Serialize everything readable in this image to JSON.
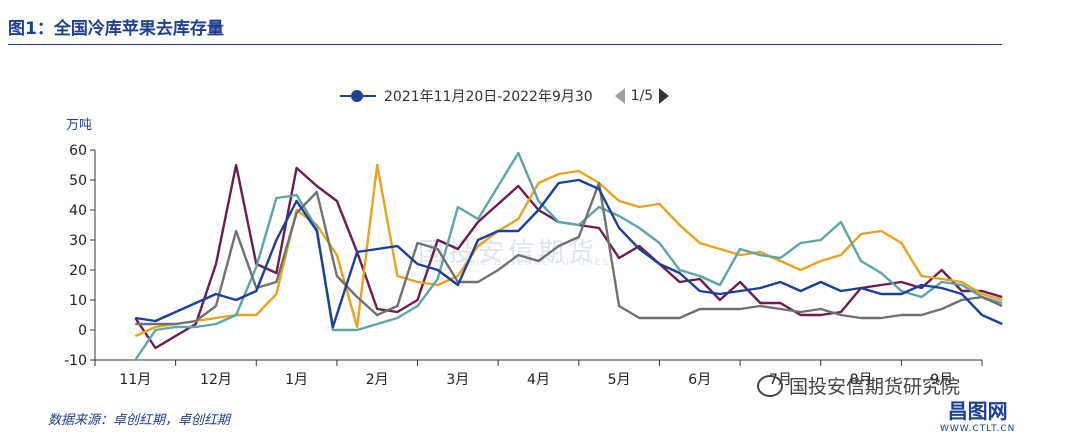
{
  "figure_title": "图1：全国冷库苹果去库存量",
  "legend": {
    "label": "2021年11月20日-2022年9月30",
    "page": "1/5"
  },
  "watermark": {
    "text": "国投安信期货",
    "sub": "SDIC ESSENCE FUTURES"
  },
  "source": "数据来源：卓创红期，卓创红期",
  "wechat_label": "国投安信期货研究院",
  "site_logo": {
    "name": "昌图网",
    "url": "WWW.CTLT.CN"
  },
  "chart_data": {
    "type": "line",
    "ylabel": "万吨",
    "ylim": [
      -10,
      60
    ],
    "yticks": [
      -10,
      0,
      10,
      20,
      30,
      40,
      50,
      60
    ],
    "x_ticks": [
      "11月",
      "12月",
      "1月",
      "2月",
      "3月",
      "4月",
      "5月",
      "6月",
      "7月",
      "8月",
      "9月"
    ],
    "x_range": [
      0,
      11
    ],
    "grid": false,
    "series": [
      {
        "name": "2021年11月20日-2022年9月30",
        "color": "#1d3f95",
        "points": [
          [
            0.5,
            4
          ],
          [
            0.75,
            3
          ],
          [
            1,
            6
          ],
          [
            1.25,
            9
          ],
          [
            1.5,
            12
          ],
          [
            1.75,
            10
          ],
          [
            2,
            13
          ],
          [
            2.25,
            30
          ],
          [
            2.5,
            43
          ],
          [
            2.75,
            33
          ],
          [
            2.95,
            1
          ],
          [
            3.25,
            26
          ],
          [
            3.5,
            27
          ],
          [
            3.75,
            28
          ],
          [
            4,
            22
          ],
          [
            4.25,
            20
          ],
          [
            4.5,
            15
          ],
          [
            4.75,
            30
          ],
          [
            5,
            33
          ],
          [
            5.25,
            33
          ],
          [
            5.5,
            40
          ],
          [
            5.75,
            49
          ],
          [
            6,
            50
          ],
          [
            6.25,
            47
          ],
          [
            6.5,
            34
          ],
          [
            6.75,
            27
          ],
          [
            7,
            22
          ],
          [
            7.25,
            19
          ],
          [
            7.5,
            13
          ],
          [
            7.75,
            12
          ],
          [
            8,
            13
          ],
          [
            8.25,
            14
          ],
          [
            8.5,
            16
          ],
          [
            8.75,
            13
          ],
          [
            9,
            16
          ],
          [
            9.25,
            13
          ],
          [
            9.5,
            14
          ],
          [
            9.75,
            12
          ],
          [
            10,
            12
          ],
          [
            10.25,
            15
          ],
          [
            10.5,
            14
          ],
          [
            10.75,
            12
          ],
          [
            11,
            5
          ],
          [
            11.25,
            2
          ]
        ]
      },
      {
        "name": "",
        "color": "#6b1e4f",
        "points": [
          [
            0.5,
            4
          ],
          [
            0.75,
            -6
          ],
          [
            1,
            -2
          ],
          [
            1.25,
            2
          ],
          [
            1.5,
            22
          ],
          [
            1.75,
            55
          ],
          [
            2,
            22
          ],
          [
            2.25,
            19
          ],
          [
            2.5,
            54
          ],
          [
            2.75,
            48
          ],
          [
            3,
            43
          ],
          [
            3.25,
            26
          ],
          [
            3.5,
            7
          ],
          [
            3.75,
            6
          ],
          [
            4,
            10
          ],
          [
            4.25,
            30
          ],
          [
            4.5,
            27
          ],
          [
            4.75,
            36
          ],
          [
            5,
            42
          ],
          [
            5.25,
            48
          ],
          [
            5.5,
            40
          ],
          [
            5.75,
            36
          ],
          [
            6,
            35
          ],
          [
            6.25,
            34
          ],
          [
            6.5,
            24
          ],
          [
            6.75,
            28
          ],
          [
            7,
            22
          ],
          [
            7.25,
            16
          ],
          [
            7.5,
            17
          ],
          [
            7.75,
            10
          ],
          [
            8,
            16
          ],
          [
            8.25,
            9
          ],
          [
            8.5,
            9
          ],
          [
            8.75,
            5
          ],
          [
            9,
            5
          ],
          [
            9.25,
            6
          ],
          [
            9.5,
            14
          ],
          [
            9.75,
            15
          ],
          [
            10,
            16
          ],
          [
            10.25,
            14
          ],
          [
            10.5,
            20
          ],
          [
            10.75,
            13
          ],
          [
            11,
            13
          ],
          [
            11.25,
            11
          ]
        ]
      },
      {
        "name": "",
        "color": "#e8a321",
        "points": [
          [
            0.5,
            -2
          ],
          [
            0.75,
            1
          ],
          [
            1,
            2
          ],
          [
            1.25,
            3
          ],
          [
            1.5,
            4
          ],
          [
            1.75,
            5
          ],
          [
            2,
            5
          ],
          [
            2.25,
            12
          ],
          [
            2.5,
            40
          ],
          [
            2.75,
            35
          ],
          [
            3,
            25
          ],
          [
            3.25,
            1
          ],
          [
            3.5,
            55
          ],
          [
            3.75,
            18
          ],
          [
            4,
            16
          ],
          [
            4.25,
            15
          ],
          [
            4.5,
            18
          ],
          [
            4.75,
            28
          ],
          [
            5,
            33
          ],
          [
            5.25,
            37
          ],
          [
            5.5,
            49
          ],
          [
            5.75,
            52
          ],
          [
            6,
            53
          ],
          [
            6.25,
            49
          ],
          [
            6.5,
            43
          ],
          [
            6.75,
            41
          ],
          [
            7,
            42
          ],
          [
            7.25,
            35
          ],
          [
            7.5,
            29
          ],
          [
            7.75,
            27
          ],
          [
            8,
            25
          ],
          [
            8.25,
            26
          ],
          [
            8.5,
            23
          ],
          [
            8.75,
            20
          ],
          [
            9,
            23
          ],
          [
            9.25,
            25
          ],
          [
            9.5,
            32
          ],
          [
            9.75,
            33
          ],
          [
            10,
            29
          ],
          [
            10.25,
            18
          ],
          [
            10.5,
            17
          ],
          [
            10.75,
            16
          ],
          [
            11,
            12
          ],
          [
            11.25,
            10
          ]
        ]
      },
      {
        "name": "",
        "color": "#5fa5a6",
        "points": [
          [
            0.5,
            -10
          ],
          [
            0.75,
            0
          ],
          [
            1,
            1
          ],
          [
            1.25,
            1
          ],
          [
            1.5,
            2
          ],
          [
            1.75,
            5
          ],
          [
            2,
            21
          ],
          [
            2.25,
            44
          ],
          [
            2.5,
            45
          ],
          [
            2.75,
            34
          ],
          [
            2.95,
            0
          ],
          [
            3.25,
            0
          ],
          [
            3.5,
            2
          ],
          [
            3.75,
            4
          ],
          [
            4,
            8
          ],
          [
            4.25,
            17
          ],
          [
            4.5,
            41
          ],
          [
            4.75,
            37
          ],
          [
            5,
            48
          ],
          [
            5.25,
            59
          ],
          [
            5.5,
            43
          ],
          [
            5.75,
            36
          ],
          [
            6,
            35
          ],
          [
            6.25,
            41
          ],
          [
            6.5,
            38
          ],
          [
            6.75,
            34
          ],
          [
            7,
            29
          ],
          [
            7.25,
            20
          ],
          [
            7.5,
            18
          ],
          [
            7.75,
            15
          ],
          [
            8,
            27
          ],
          [
            8.25,
            25
          ],
          [
            8.5,
            24
          ],
          [
            8.75,
            29
          ],
          [
            9,
            30
          ],
          [
            9.25,
            36
          ],
          [
            9.5,
            23
          ],
          [
            9.75,
            19
          ],
          [
            10,
            13
          ],
          [
            10.25,
            11
          ],
          [
            10.5,
            16
          ],
          [
            10.75,
            15
          ],
          [
            11,
            11
          ],
          [
            11.25,
            9
          ]
        ]
      },
      {
        "name": "",
        "color": "#6e7273",
        "points": [
          [
            0.5,
            2
          ],
          [
            0.75,
            2
          ],
          [
            1,
            2
          ],
          [
            1.25,
            3
          ],
          [
            1.5,
            8
          ],
          [
            1.75,
            33
          ],
          [
            2,
            14
          ],
          [
            2.25,
            16
          ],
          [
            2.5,
            39
          ],
          [
            2.75,
            46
          ],
          [
            3,
            18
          ],
          [
            3.25,
            11
          ],
          [
            3.5,
            5
          ],
          [
            3.75,
            8
          ],
          [
            4,
            29
          ],
          [
            4.25,
            27
          ],
          [
            4.5,
            16
          ],
          [
            4.75,
            16
          ],
          [
            5,
            20
          ],
          [
            5.25,
            25
          ],
          [
            5.5,
            23
          ],
          [
            5.75,
            28
          ],
          [
            6,
            31
          ],
          [
            6.25,
            49
          ],
          [
            6.5,
            8
          ],
          [
            6.75,
            4
          ],
          [
            7,
            4
          ],
          [
            7.25,
            4
          ],
          [
            7.5,
            7
          ],
          [
            7.75,
            7
          ],
          [
            8,
            7
          ],
          [
            8.25,
            8
          ],
          [
            8.5,
            7
          ],
          [
            8.75,
            6
          ],
          [
            9,
            7
          ],
          [
            9.25,
            5
          ],
          [
            9.5,
            4
          ],
          [
            9.75,
            4
          ],
          [
            10,
            5
          ],
          [
            10.25,
            5
          ],
          [
            10.5,
            7
          ],
          [
            10.75,
            10
          ],
          [
            11,
            11
          ],
          [
            11.25,
            8
          ]
        ]
      }
    ]
  }
}
